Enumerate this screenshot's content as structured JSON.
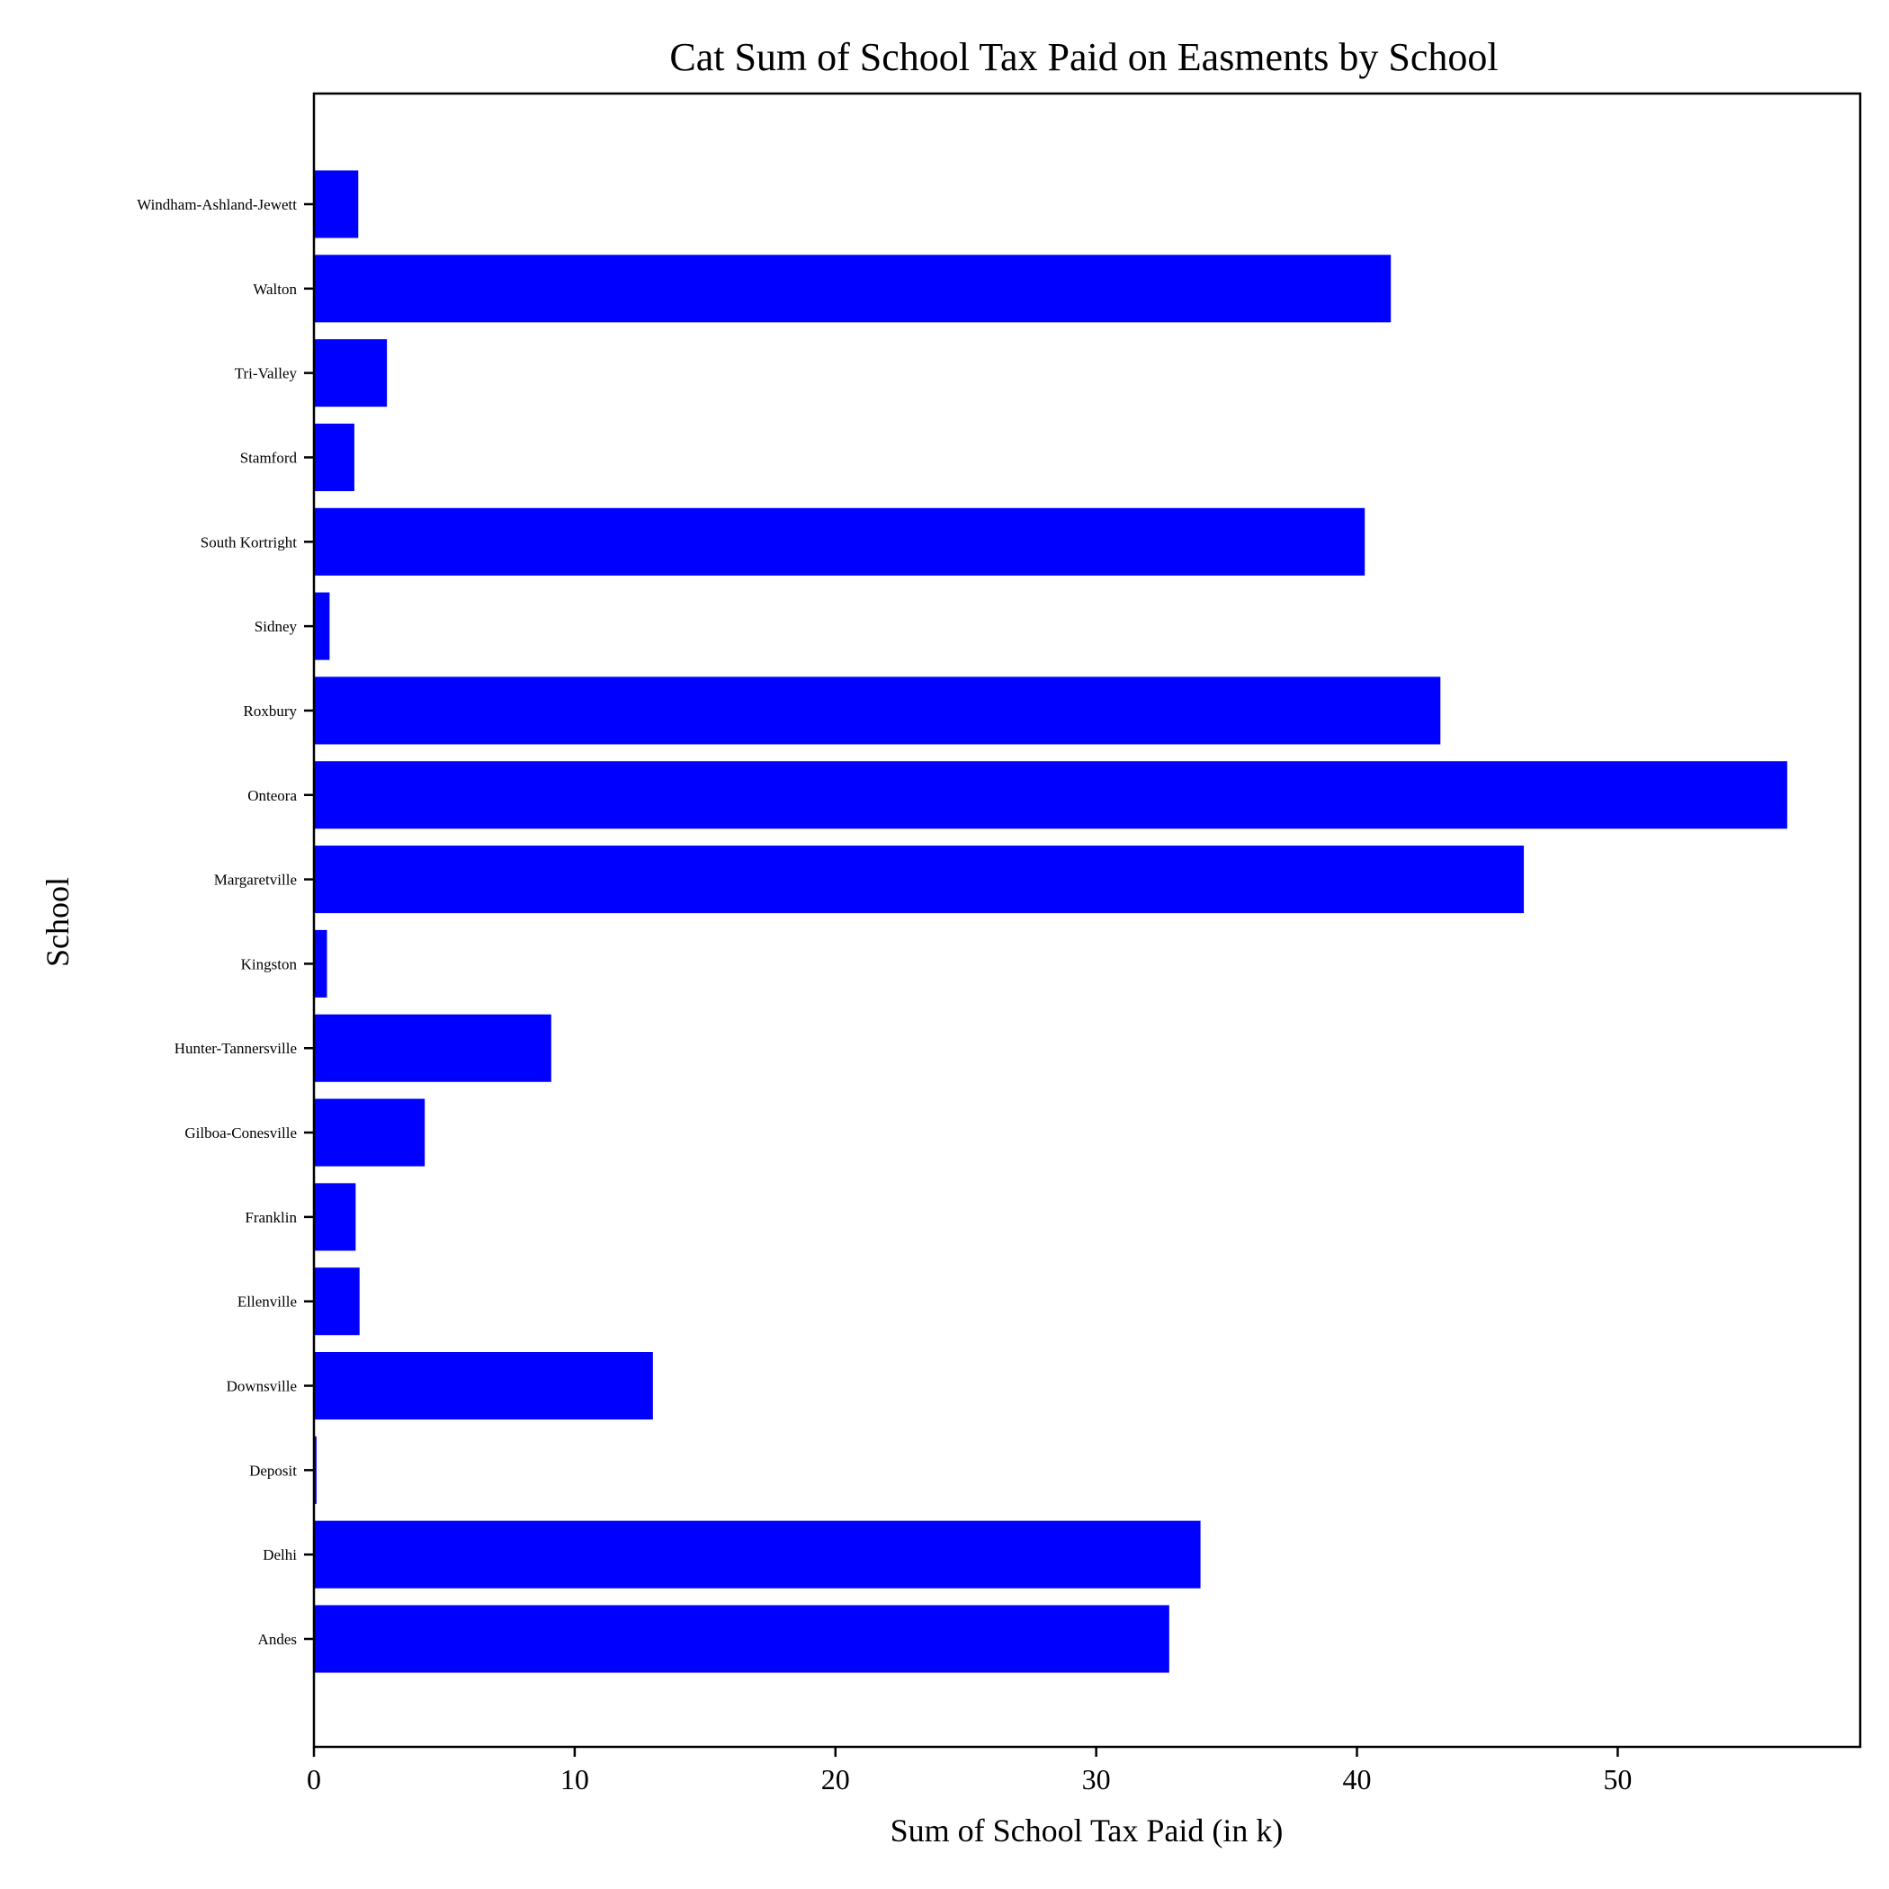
{
  "chart_data": {
    "type": "bar",
    "orientation": "horizontal",
    "title": "Cat Sum of School Tax Paid on Easments by School",
    "xlabel": "Sum of School Tax Paid (in k)",
    "ylabel": "School",
    "categories": [
      "Andes",
      "Delhi",
      "Deposit",
      "Downsville",
      "Ellenville",
      "Franklin",
      "Gilboa-Conesville",
      "Hunter-Tannersville",
      "Kingston",
      "Margaretville",
      "Onteora",
      "Roxbury",
      "Sidney",
      "South Kortright",
      "Stamford",
      "Tri-Valley",
      "Walton",
      "Windham-Ashland-Jewett"
    ],
    "values": [
      32.8,
      34.0,
      0.1,
      13.0,
      1.75,
      1.6,
      4.25,
      9.1,
      0.5,
      46.4,
      56.5,
      43.2,
      0.6,
      40.3,
      1.55,
      2.8,
      41.3,
      1.7
    ],
    "xlim": [
      0,
      59.3
    ],
    "xticks": [
      0,
      10,
      20,
      30,
      40,
      50
    ],
    "grid": false,
    "legend": "none",
    "bar_color": "#0000ff"
  }
}
